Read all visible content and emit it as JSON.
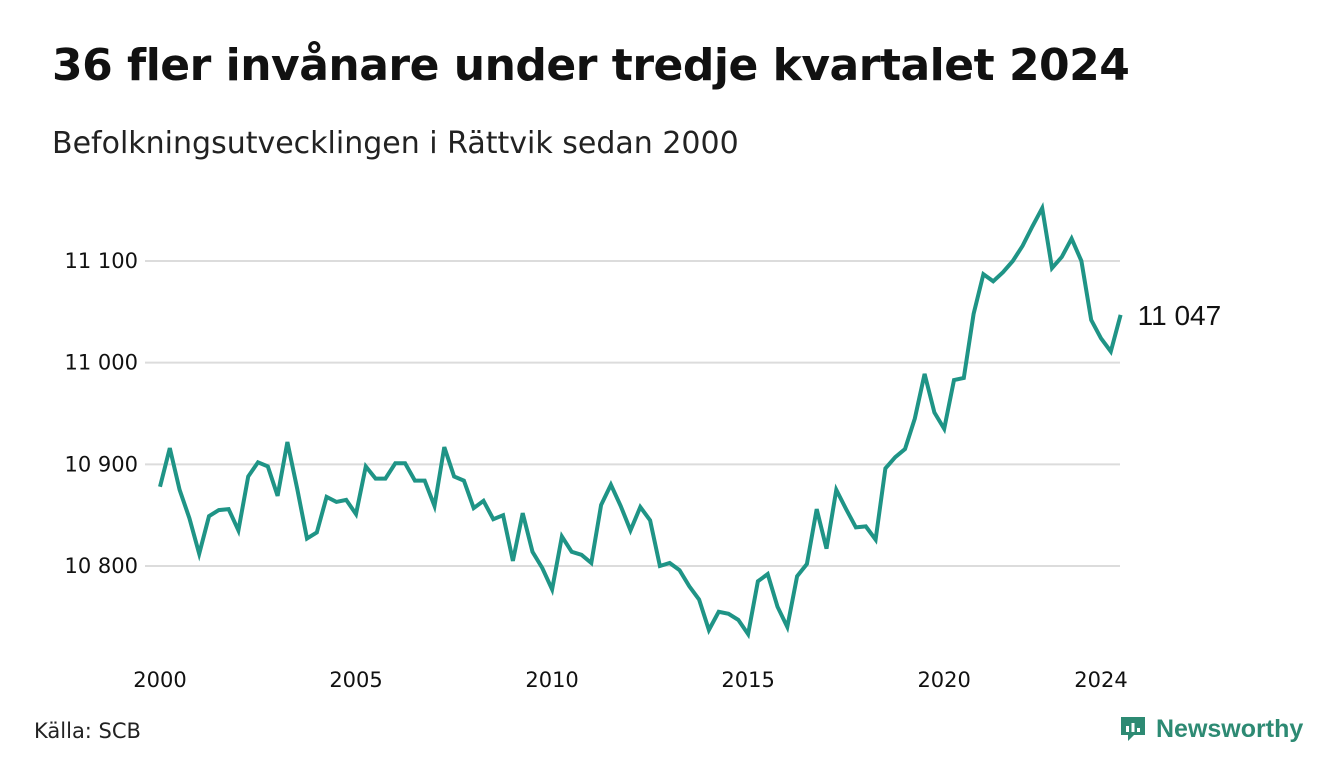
{
  "header": {
    "title": "36 fler invånare under tredje kvartalet 2024",
    "subtitle": "Befolkningsutvecklingen i Rättvik sedan 2000"
  },
  "footer": {
    "source": "Källa: SCB",
    "brand": "Newsworthy",
    "brand_icon": "newsworthy-logo-icon"
  },
  "colors": {
    "line": "#1f9486",
    "grid": "#dcdcdc",
    "brand": "#2d8a73"
  },
  "chart_data": {
    "type": "line",
    "title": "36 fler invånare under tredje kvartalet 2024",
    "subtitle": "Befolkningsutvecklingen i Rättvik sedan 2000",
    "xlabel": "",
    "ylabel": "",
    "ylim": [
      10730,
      11155
    ],
    "xlim": [
      2000.0,
      2024.5
    ],
    "grid": "horizontal",
    "y_ticks": [
      {
        "value": 10800,
        "label": "10 800"
      },
      {
        "value": 10900,
        "label": "10 900"
      },
      {
        "value": 11000,
        "label": "11 000"
      },
      {
        "value": 11100,
        "label": "11 100"
      }
    ],
    "x_ticks": [
      {
        "value": 2000,
        "label": "2000"
      },
      {
        "value": 2005,
        "label": "2005"
      },
      {
        "value": 2010,
        "label": "2010"
      },
      {
        "value": 2015,
        "label": "2015"
      },
      {
        "value": 2020,
        "label": "2020"
      },
      {
        "value": 2024,
        "label": "2024"
      }
    ],
    "end_label": "11 047",
    "series": [
      {
        "values": [
          10878,
          10916,
          10875,
          10847,
          10812,
          10849,
          10855,
          10856,
          10835,
          10888,
          10902,
          10898,
          10869,
          10922,
          10876,
          10827,
          10833,
          10868,
          10863,
          10865,
          10851,
          10898,
          10886,
          10886,
          10901,
          10901,
          10884,
          10884,
          10859,
          10917,
          10888,
          10884,
          10857,
          10864,
          10846,
          10850,
          10805,
          10852,
          10814,
          10798,
          10777,
          10829,
          10814,
          10811,
          10803,
          10860,
          10880,
          10859,
          10835,
          10858,
          10845,
          10800,
          10803,
          10796,
          10780,
          10767,
          10737,
          10755,
          10753,
          10747,
          10733,
          10785,
          10792,
          10760,
          10740,
          10790,
          10802,
          10856,
          10817,
          10875,
          10856,
          10838,
          10839,
          10826,
          10896,
          10907,
          10915,
          10945,
          10989,
          10951,
          10935,
          10983,
          10985,
          11048,
          11087,
          11080,
          11089,
          11100,
          11115,
          11134,
          11152,
          11093,
          11104,
          11122,
          11100,
          11042,
          11024,
          11011,
          11047
        ]
      }
    ]
  }
}
